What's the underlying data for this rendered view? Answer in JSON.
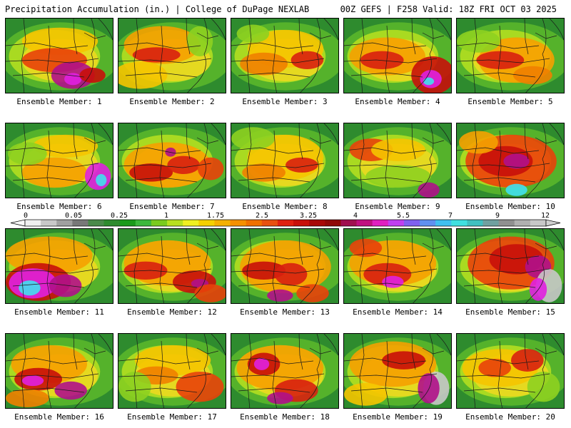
{
  "header": {
    "left": "Precipitation Accumulation (in.) | College of DuPage NEXLAB",
    "right": "00Z GEFS | F258 Valid: 18Z FRI OCT 03 2025"
  },
  "members": [
    {
      "label": "Ensemble Member: 1",
      "blobs": [
        [
          0.5,
          0.3,
          0.35,
          0.18,
          "#f5c400"
        ],
        [
          0.45,
          0.55,
          0.3,
          0.16,
          "#e8410a"
        ],
        [
          0.62,
          0.75,
          0.2,
          0.18,
          "#b0108a"
        ],
        [
          0.62,
          0.8,
          0.08,
          0.08,
          "#e020e0"
        ],
        [
          0.8,
          0.75,
          0.12,
          0.1,
          "#c8100a"
        ]
      ]
    },
    {
      "label": "Ensemble Member: 2",
      "blobs": [
        [
          0.4,
          0.35,
          0.35,
          0.25,
          "#f5a000"
        ],
        [
          0.35,
          0.48,
          0.22,
          0.1,
          "#d82010"
        ],
        [
          0.2,
          0.75,
          0.25,
          0.18,
          "#f5c400"
        ],
        [
          0.75,
          0.3,
          0.12,
          0.2,
          "#8ed020"
        ]
      ]
    },
    {
      "label": "Ensemble Member: 3",
      "blobs": [
        [
          0.5,
          0.4,
          0.35,
          0.25,
          "#f5c400"
        ],
        [
          0.3,
          0.6,
          0.22,
          0.15,
          "#f08000"
        ],
        [
          0.7,
          0.55,
          0.15,
          0.12,
          "#d82010"
        ],
        [
          0.2,
          0.2,
          0.15,
          0.12,
          "#8ed020"
        ]
      ]
    },
    {
      "label": "Ensemble Member: 4",
      "blobs": [
        [
          0.4,
          0.5,
          0.35,
          0.25,
          "#f5a000"
        ],
        [
          0.35,
          0.55,
          0.2,
          0.12,
          "#d82010"
        ],
        [
          0.82,
          0.75,
          0.2,
          0.25,
          "#c8100a"
        ],
        [
          0.8,
          0.8,
          0.1,
          0.12,
          "#e020e0"
        ],
        [
          0.78,
          0.83,
          0.05,
          0.05,
          "#40e0f0"
        ]
      ]
    },
    {
      "label": "Ensemble Member: 5",
      "blobs": [
        [
          0.55,
          0.55,
          0.35,
          0.3,
          "#f5a000"
        ],
        [
          0.4,
          0.55,
          0.22,
          0.12,
          "#d82010"
        ],
        [
          0.7,
          0.75,
          0.18,
          0.12,
          "#f08000"
        ],
        [
          0.2,
          0.3,
          0.2,
          0.15,
          "#8ed020"
        ]
      ]
    },
    {
      "label": "Ensemble Member: 6",
      "blobs": [
        [
          0.55,
          0.3,
          0.3,
          0.15,
          "#f5c400"
        ],
        [
          0.45,
          0.65,
          0.3,
          0.2,
          "#f5a000"
        ],
        [
          0.85,
          0.7,
          0.12,
          0.18,
          "#e020e0"
        ],
        [
          0.88,
          0.75,
          0.05,
          0.08,
          "#40e0f0"
        ],
        [
          0.2,
          0.4,
          0.18,
          0.15,
          "#8ed020"
        ]
      ]
    },
    {
      "label": "Ensemble Member: 7",
      "blobs": [
        [
          0.45,
          0.55,
          0.4,
          0.3,
          "#f5a000"
        ],
        [
          0.3,
          0.65,
          0.2,
          0.12,
          "#c8100a"
        ],
        [
          0.6,
          0.55,
          0.15,
          0.12,
          "#d82010"
        ],
        [
          0.85,
          0.6,
          0.12,
          0.15,
          "#e8410a"
        ],
        [
          0.48,
          0.38,
          0.05,
          0.06,
          "#b0108a"
        ]
      ]
    },
    {
      "label": "Ensemble Member: 8",
      "blobs": [
        [
          0.5,
          0.45,
          0.35,
          0.3,
          "#f5c400"
        ],
        [
          0.3,
          0.65,
          0.2,
          0.12,
          "#f08000"
        ],
        [
          0.65,
          0.55,
          0.15,
          0.1,
          "#d82010"
        ],
        [
          0.2,
          0.2,
          0.2,
          0.15,
          "#8ed020"
        ]
      ]
    },
    {
      "label": "Ensemble Member: 9",
      "blobs": [
        [
          0.25,
          0.35,
          0.2,
          0.15,
          "#e8410a"
        ],
        [
          0.5,
          0.35,
          0.25,
          0.15,
          "#f5c400"
        ],
        [
          0.5,
          0.7,
          0.3,
          0.15,
          "#8ed020"
        ],
        [
          0.78,
          0.88,
          0.1,
          0.1,
          "#b0108a"
        ]
      ]
    },
    {
      "label": "Ensemble Member: 10",
      "blobs": [
        [
          0.5,
          0.5,
          0.42,
          0.35,
          "#e8410a"
        ],
        [
          0.45,
          0.5,
          0.25,
          0.2,
          "#c8100a"
        ],
        [
          0.55,
          0.5,
          0.12,
          0.1,
          "#b0108a"
        ],
        [
          0.55,
          0.88,
          0.1,
          0.08,
          "#40e0f0"
        ],
        [
          0.2,
          0.25,
          0.18,
          0.15,
          "#f5a000"
        ]
      ]
    },
    {
      "label": "Ensemble Member: 11",
      "blobs": [
        [
          0.4,
          0.35,
          0.4,
          0.25,
          "#f5a000"
        ],
        [
          0.3,
          0.7,
          0.3,
          0.25,
          "#c8100a"
        ],
        [
          0.25,
          0.72,
          0.22,
          0.2,
          "#e020e0"
        ],
        [
          0.22,
          0.78,
          0.1,
          0.1,
          "#40e0f0"
        ],
        [
          0.55,
          0.75,
          0.15,
          0.15,
          "#b0108a"
        ]
      ]
    },
    {
      "label": "Ensemble Member: 12",
      "blobs": [
        [
          0.45,
          0.45,
          0.4,
          0.3,
          "#f5a000"
        ],
        [
          0.25,
          0.55,
          0.2,
          0.12,
          "#d82010"
        ],
        [
          0.7,
          0.7,
          0.2,
          0.15,
          "#c8100a"
        ],
        [
          0.75,
          0.72,
          0.08,
          0.06,
          "#b0108a"
        ],
        [
          0.85,
          0.85,
          0.15,
          0.12,
          "#e8410a"
        ]
      ]
    },
    {
      "label": "Ensemble Member: 13",
      "blobs": [
        [
          0.5,
          0.5,
          0.42,
          0.35,
          "#f5a000"
        ],
        [
          0.3,
          0.55,
          0.2,
          0.12,
          "#c8100a"
        ],
        [
          0.55,
          0.6,
          0.15,
          0.15,
          "#d82010"
        ],
        [
          0.45,
          0.88,
          0.12,
          0.08,
          "#b0108a"
        ],
        [
          0.75,
          0.85,
          0.15,
          0.12,
          "#e8410a"
        ]
      ]
    },
    {
      "label": "Ensemble Member: 14",
      "blobs": [
        [
          0.45,
          0.45,
          0.4,
          0.3,
          "#f5a000"
        ],
        [
          0.4,
          0.6,
          0.22,
          0.15,
          "#d82010"
        ],
        [
          0.45,
          0.7,
          0.1,
          0.08,
          "#e020e0"
        ],
        [
          0.2,
          0.25,
          0.15,
          0.12,
          "#e8410a"
        ]
      ]
    },
    {
      "label": "Ensemble Member: 15",
      "blobs": [
        [
          0.5,
          0.45,
          0.4,
          0.35,
          "#e8410a"
        ],
        [
          0.55,
          0.4,
          0.25,
          0.2,
          "#c8100a"
        ],
        [
          0.75,
          0.5,
          0.12,
          0.15,
          "#b0108a"
        ],
        [
          0.85,
          0.75,
          0.12,
          0.22,
          "#c8c8c8"
        ],
        [
          0.75,
          0.8,
          0.08,
          0.15,
          "#e020e0"
        ]
      ]
    },
    {
      "label": "Ensemble Member: 16",
      "blobs": [
        [
          0.4,
          0.4,
          0.35,
          0.25,
          "#f5a000"
        ],
        [
          0.3,
          0.6,
          0.22,
          0.15,
          "#c8100a"
        ],
        [
          0.25,
          0.62,
          0.1,
          0.07,
          "#e020e0"
        ],
        [
          0.6,
          0.75,
          0.15,
          0.12,
          "#b0108a"
        ],
        [
          0.2,
          0.85,
          0.2,
          0.12,
          "#f08000"
        ]
      ]
    },
    {
      "label": "Ensemble Member: 17",
      "blobs": [
        [
          0.5,
          0.35,
          0.35,
          0.2,
          "#f5c400"
        ],
        [
          0.35,
          0.55,
          0.2,
          0.12,
          "#f08000"
        ],
        [
          0.75,
          0.7,
          0.22,
          0.2,
          "#e8410a"
        ],
        [
          0.15,
          0.7,
          0.15,
          0.2,
          "#8ed020"
        ]
      ]
    },
    {
      "label": "Ensemble Member: 18",
      "blobs": [
        [
          0.45,
          0.45,
          0.4,
          0.3,
          "#f5a000"
        ],
        [
          0.3,
          0.4,
          0.15,
          0.15,
          "#c8100a"
        ],
        [
          0.28,
          0.4,
          0.07,
          0.08,
          "#e020e0"
        ],
        [
          0.6,
          0.75,
          0.2,
          0.15,
          "#d82010"
        ],
        [
          0.45,
          0.85,
          0.12,
          0.08,
          "#b0108a"
        ]
      ]
    },
    {
      "label": "Ensemble Member: 19",
      "blobs": [
        [
          0.45,
          0.4,
          0.4,
          0.3,
          "#f5a000"
        ],
        [
          0.55,
          0.35,
          0.2,
          0.12,
          "#c8100a"
        ],
        [
          0.85,
          0.72,
          0.12,
          0.22,
          "#c8c8c8"
        ],
        [
          0.78,
          0.72,
          0.1,
          0.2,
          "#b0108a"
        ],
        [
          0.2,
          0.8,
          0.2,
          0.15,
          "#f5c400"
        ]
      ]
    },
    {
      "label": "Ensemble Member: 20",
      "blobs": [
        [
          0.4,
          0.45,
          0.35,
          0.25,
          "#f5c400"
        ],
        [
          0.35,
          0.45,
          0.15,
          0.12,
          "#e8410a"
        ],
        [
          0.65,
          0.35,
          0.15,
          0.15,
          "#d82010"
        ],
        [
          0.8,
          0.7,
          0.15,
          0.2,
          "#8ed020"
        ]
      ]
    }
  ],
  "colorbar": {
    "labels": [
      "0",
      "0.05",
      "0.25",
      "1",
      "1.75",
      "2.5",
      "3.25",
      "4",
      "5.5",
      "7",
      "9",
      "12"
    ],
    "colors": [
      "#f0f0f0",
      "#c8c8c8",
      "#a0a0a0",
      "#787878",
      "#4a8a4a",
      "#2e8b2e",
      "#1a9a1a",
      "#3cb83c",
      "#7acb1e",
      "#b8e020",
      "#f0f020",
      "#f5d000",
      "#f5b000",
      "#f59000",
      "#f07000",
      "#e85010",
      "#e02010",
      "#c8100a",
      "#a80808",
      "#900808",
      "#a01050",
      "#c01080",
      "#e020c0",
      "#c040f0",
      "#8060f0",
      "#6090f0",
      "#40c0f0",
      "#40e0e0",
      "#40c0c0",
      "#70a0a0",
      "#909090",
      "#b0b0b0",
      "#c8c8c8"
    ]
  }
}
